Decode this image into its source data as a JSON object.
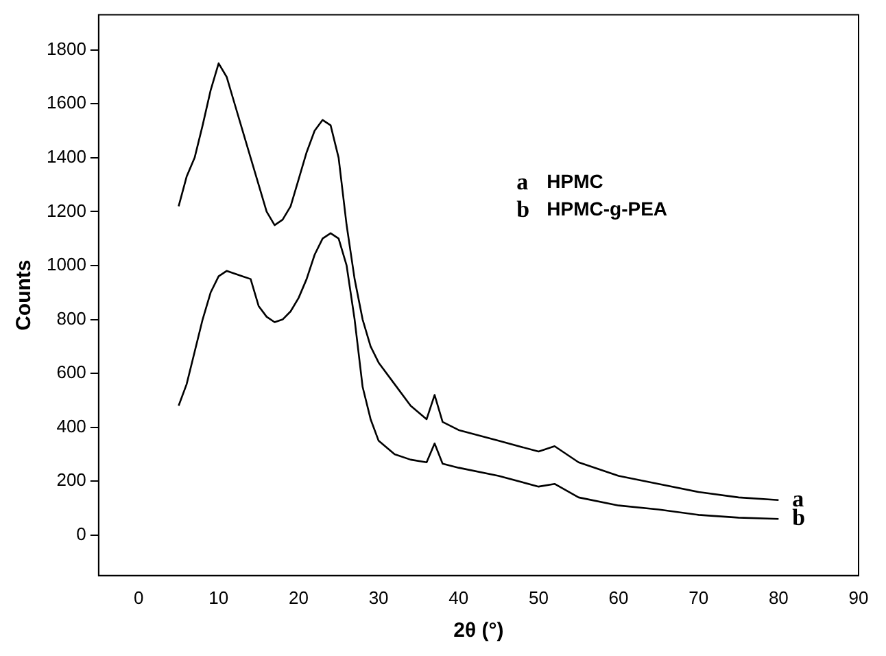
{
  "chart_data": {
    "type": "line",
    "xlabel": "2θ (°)",
    "ylabel": "Counts",
    "xlim": [
      -5,
      90
    ],
    "ylim": [
      -150,
      1930
    ],
    "xticks": [
      0,
      10,
      20,
      30,
      40,
      50,
      60,
      70,
      80,
      90
    ],
    "yticks": [
      0,
      200,
      400,
      600,
      800,
      1000,
      1200,
      1400,
      1600,
      1800
    ],
    "grid": false,
    "marker": "none",
    "line_style": "solid",
    "x": [
      5,
      6,
      7,
      8,
      9,
      10,
      11,
      12,
      13,
      14,
      15,
      16,
      17,
      18,
      19,
      20,
      21,
      22,
      23,
      24,
      25,
      26,
      27,
      28,
      29,
      30,
      32,
      34,
      36,
      37,
      38,
      40,
      45,
      50,
      52,
      55,
      60,
      65,
      70,
      75,
      80
    ],
    "series": [
      {
        "color": "#000000",
        "values": [
          1220,
          1330,
          1400,
          1520,
          1650,
          1750,
          1700,
          1600,
          1500,
          1400,
          1300,
          1200,
          1150,
          1170,
          1220,
          1320,
          1420,
          1500,
          1540,
          1520,
          1400,
          1150,
          950,
          800,
          700,
          640,
          560,
          480,
          430,
          520,
          420,
          390,
          350,
          310,
          330,
          270,
          220,
          190,
          160,
          140,
          130
        ]
      },
      {
        "color": "#000000",
        "values": [
          480,
          560,
          680,
          800,
          900,
          960,
          980,
          970,
          960,
          950,
          850,
          810,
          790,
          800,
          830,
          880,
          950,
          1040,
          1100,
          1120,
          1100,
          1000,
          800,
          550,
          430,
          350,
          300,
          280,
          270,
          340,
          265,
          250,
          220,
          180,
          190,
          140,
          110,
          95,
          75,
          65,
          60
        ]
      }
    ],
    "annotations": [
      "a HPMC",
      "b HPMC-g-PEA",
      {
        "text": "a",
        "x": 80,
        "y": 130
      },
      {
        "text": "b",
        "x": 80,
        "y": 60
      }
    ]
  }
}
